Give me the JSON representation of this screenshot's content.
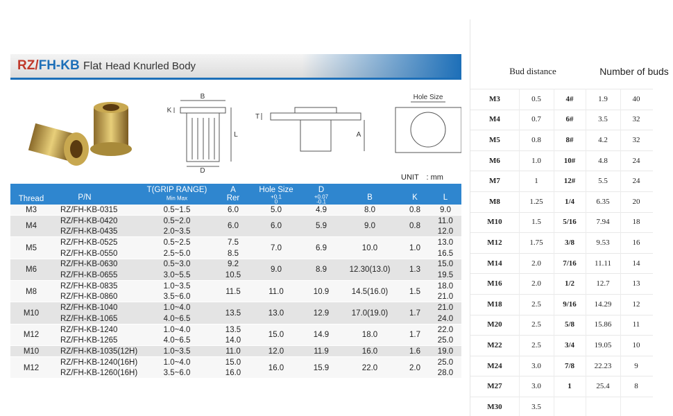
{
  "banner": {
    "code_a": "RZ/",
    "code_b": "FH-KB",
    "title_a": "Flat",
    "title_b": "Head Knurled Body"
  },
  "diagram_labels": {
    "b": "B",
    "k": "K",
    "d": "D",
    "l": "L",
    "t": "T",
    "a": "A",
    "hole_size": "Hole Size"
  },
  "unit": "UNIT　: mm",
  "spec_table": {
    "headers": {
      "thread": "Thread",
      "pn": "P/N",
      "grip": "T(GRIP RANGE)",
      "grip_sub": "Min Max",
      "a": "A",
      "a_sub": "Rer",
      "hole": "Hole Size",
      "hole_tol_up": "+0.1",
      "hole_tol_down": "0",
      "d": "D",
      "d_tol_up": "+0.07",
      "d_tol_down": "-0.1",
      "b": "B",
      "k": "K",
      "l": "L"
    },
    "groups": [
      {
        "thread": "M3",
        "rows": [
          {
            "pn": "RZ/FH-KB-0315",
            "grip": "0.5~1.5"
          }
        ],
        "a": [
          "6.0"
        ],
        "hole": "5.0",
        "d": "4.9",
        "b": "8.0",
        "k": "0.8",
        "l": [
          "9.0"
        ]
      },
      {
        "thread": "M4",
        "rows": [
          {
            "pn": "RZ/FH-KB-0420",
            "grip": "0.5~2.0"
          },
          {
            "pn": "RZ/FH-KB-0435",
            "grip": "2.0~3.5"
          }
        ],
        "a": [
          "6.0"
        ],
        "hole": "6.0",
        "d": "5.9",
        "b": "9.0",
        "k": "0.8",
        "l": [
          "11.0",
          "12.0"
        ]
      },
      {
        "thread": "M5",
        "rows": [
          {
            "pn": "RZ/FH-KB-0525",
            "grip": "0.5~2.5"
          },
          {
            "pn": "RZ/FH-KB-0550",
            "grip": "2.5~5.0"
          }
        ],
        "a": [
          "7.5",
          "8.5"
        ],
        "hole": "7.0",
        "d": "6.9",
        "b": "10.0",
        "k": "1.0",
        "l": [
          "13.0",
          "16.5"
        ]
      },
      {
        "thread": "M6",
        "rows": [
          {
            "pn": "RZ/FH-KB-0630",
            "grip": "0.5~3.0"
          },
          {
            "pn": "RZ/FH-KB-0655",
            "grip": "3.0~5.5"
          }
        ],
        "a": [
          "9.2",
          "10.5"
        ],
        "hole": "9.0",
        "d": "8.9",
        "b": "12.30(13.0)",
        "k": "1.3",
        "l": [
          "15.0",
          "19.5"
        ]
      },
      {
        "thread": "M8",
        "rows": [
          {
            "pn": "RZ/FH-KB-0835",
            "grip": "1.0~3.5"
          },
          {
            "pn": "RZ/FH-KB-0860",
            "grip": "3.5~6.0"
          }
        ],
        "a": [
          "11.5"
        ],
        "hole": "11.0",
        "d": "10.9",
        "b": "14.5(16.0)",
        "k": "1.5",
        "l": [
          "18.0",
          "21.0"
        ]
      },
      {
        "thread": "M10",
        "rows": [
          {
            "pn": "RZ/FH-KB-1040",
            "grip": "1.0~4.0"
          },
          {
            "pn": "RZ/FH-KB-1065",
            "grip": "4.0~6.5"
          }
        ],
        "a": [
          "13.5"
        ],
        "hole": "13.0",
        "d": "12.9",
        "b": "17.0(19.0)",
        "k": "1.7",
        "l": [
          "21.0",
          "24.0"
        ]
      },
      {
        "thread": "M12",
        "rows": [
          {
            "pn": "RZ/FH-KB-1240",
            "grip": "1.0~4.0"
          },
          {
            "pn": "RZ/FH-KB-1265",
            "grip": "4.0~6.5"
          }
        ],
        "a": [
          "13.5",
          "14.0"
        ],
        "hole": "15.0",
        "d": "14.9",
        "b": "18.0",
        "k": "1.7",
        "l": [
          "22.0",
          "25.0"
        ]
      },
      {
        "thread": "M10",
        "rows": [
          {
            "pn": "RZ/FH-KB-1035(12H)",
            "grip": "1.0~3.5"
          }
        ],
        "a": [
          "11.0"
        ],
        "hole": "12.0",
        "d": "11.9",
        "b": "16.0",
        "k": "1.6",
        "l": [
          "19.0"
        ]
      },
      {
        "thread": "M12",
        "rows": [
          {
            "pn": "RZ/FH-KB-1240(16H)",
            "grip": "1.0~4.0"
          },
          {
            "pn": "RZ/FH-KB-1260(16H)",
            "grip": "3.5~6.0"
          }
        ],
        "a": [
          "15.0",
          "16.0"
        ],
        "hole": "16.0",
        "d": "15.9",
        "b": "22.0",
        "k": "2.0",
        "l": [
          "25.0",
          "28.0"
        ]
      }
    ]
  },
  "bud_table": {
    "headers": {
      "distance": "Bud distance",
      "count": "Number of buds"
    },
    "rows": [
      [
        "M3",
        "0.5",
        "4#",
        "1.9",
        "40"
      ],
      [
        "M4",
        "0.7",
        "6#",
        "3.5",
        "32"
      ],
      [
        "M5",
        "0.8",
        "8#",
        "4.2",
        "32"
      ],
      [
        "M6",
        "1.0",
        "10#",
        "4.8",
        "24"
      ],
      [
        "M7",
        "1",
        "12#",
        "5.5",
        "24"
      ],
      [
        "M8",
        "1.25",
        "1/4",
        "6.35",
        "20"
      ],
      [
        "M10",
        "1.5",
        "5/16",
        "7.94",
        "18"
      ],
      [
        "M12",
        "1.75",
        "3/8",
        "9.53",
        "16"
      ],
      [
        "M14",
        "2.0",
        "7/16",
        "11.11",
        "14"
      ],
      [
        "M16",
        "2.0",
        "1/2",
        "12.7",
        "13"
      ],
      [
        "M18",
        "2.5",
        "9/16",
        "14.29",
        "12"
      ],
      [
        "M20",
        "2.5",
        "5/8",
        "15.86",
        "11"
      ],
      [
        "M22",
        "2.5",
        "3/4",
        "19.05",
        "10"
      ],
      [
        "M24",
        "3.0",
        "7/8",
        "22.23",
        "9"
      ],
      [
        "M27",
        "3.0",
        "1",
        "25.4",
        "8"
      ],
      [
        "M30",
        "3.5"
      ]
    ]
  }
}
